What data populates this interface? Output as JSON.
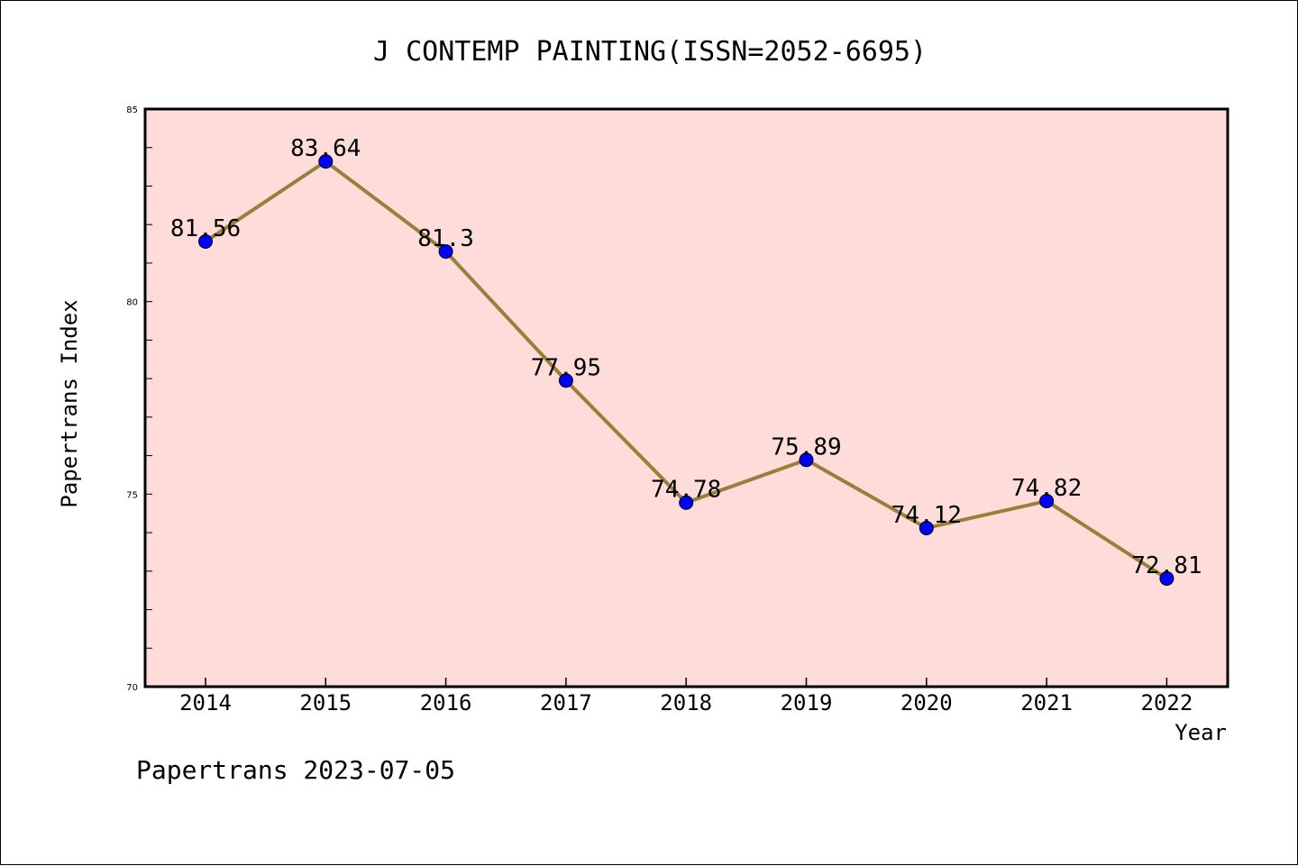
{
  "chart_data": {
    "type": "line",
    "title": "J CONTEMP PAINTING(ISSN=2052-6695)",
    "xlabel": "Year",
    "ylabel": "Papertrans Index",
    "categories": [
      "2014",
      "2015",
      "2016",
      "2017",
      "2018",
      "2019",
      "2020",
      "2021",
      "2022"
    ],
    "values": [
      81.56,
      83.64,
      81.3,
      77.95,
      74.78,
      75.89,
      74.12,
      74.82,
      72.81
    ],
    "data_labels": [
      "81.56",
      "83.64",
      "81.3",
      "77.95",
      "74.78",
      "75.89",
      "74.12",
      "74.82",
      "72.81"
    ],
    "ylim": [
      70,
      85
    ],
    "yticks": [
      "70",
      "75",
      "80",
      "85"
    ],
    "grid": false,
    "legend": "none",
    "colors": {
      "plot_background": "#fddcd9",
      "line": "#9a7f3a",
      "marker": "#0000ff"
    }
  },
  "footer": {
    "text": "Papertrans 2023-07-05"
  }
}
